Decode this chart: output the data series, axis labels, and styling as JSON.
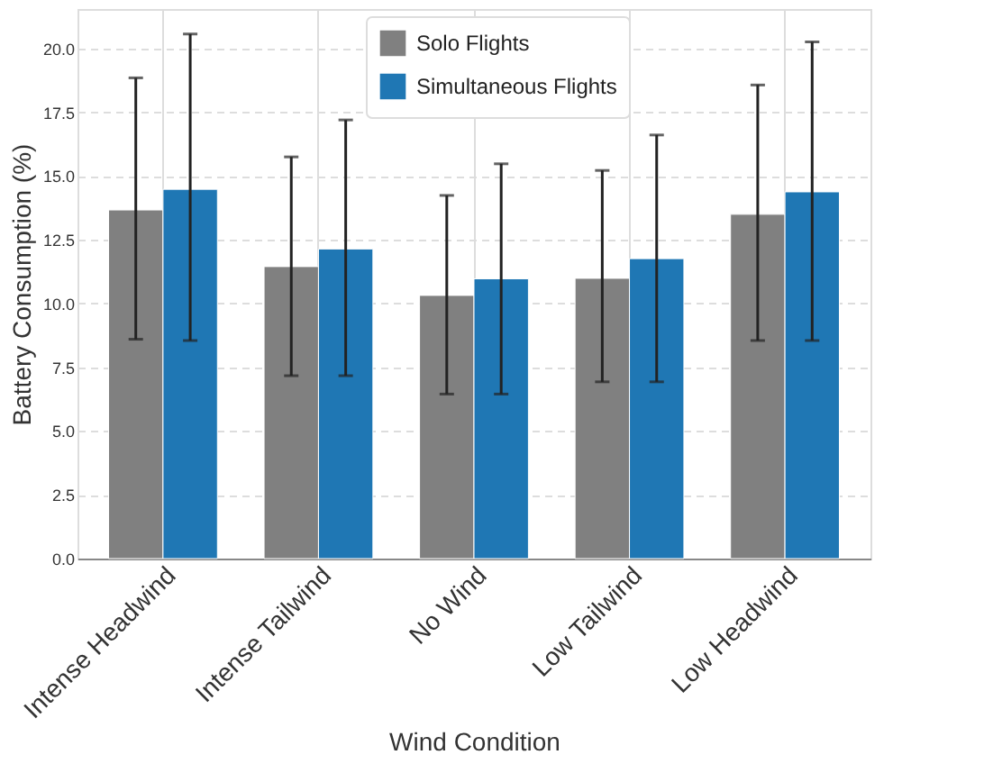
{
  "chart_data": {
    "type": "bar",
    "xlabel": "Wind Condition",
    "ylabel": "Battery Consumption (%)",
    "categories": [
      "Intense Headwind",
      "Intense Tailwind",
      "No Wind",
      "Low Tailwind",
      "Low Headwind"
    ],
    "series": [
      {
        "name": "Solo Flights",
        "color": "#808080",
        "values": [
          13.67,
          11.45,
          10.32,
          10.99,
          13.5
        ],
        "errors": [
          [
            8.6,
            18.85
          ],
          [
            7.17,
            15.75
          ],
          [
            6.45,
            14.24
          ],
          [
            6.93,
            15.22
          ],
          [
            8.55,
            18.57
          ]
        ]
      },
      {
        "name": "Simultaneous Flights",
        "color": "#1f77b4",
        "values": [
          14.48,
          12.14,
          10.97,
          11.76,
          14.38
        ],
        "errors": [
          [
            8.55,
            20.57
          ],
          [
            7.17,
            17.2
          ],
          [
            6.45,
            15.48
          ],
          [
            6.93,
            16.61
          ],
          [
            8.55,
            20.26
          ]
        ]
      }
    ],
    "ylim": [
      0,
      21.55
    ],
    "yticks": [
      {
        "value": 0,
        "label": "0.0"
      },
      2.5,
      {
        "value": 5,
        "label": "5.0"
      },
      7.5,
      {
        "value": 10,
        "label": "10.0"
      },
      12.5,
      {
        "value": 15,
        "label": "15.0"
      },
      17.5,
      {
        "value": 20,
        "label": "20.0"
      }
    ],
    "grid": true,
    "legend": "top"
  }
}
